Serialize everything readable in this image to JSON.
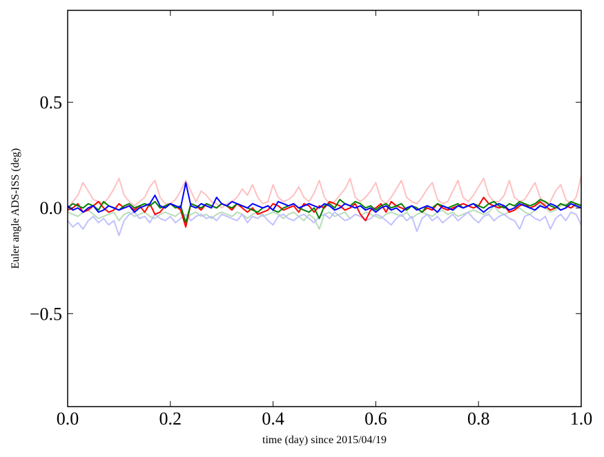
{
  "chart_data": {
    "type": "line",
    "xlabel": "time (day) since 2015/04/19",
    "ylabel": "Euler angle ADS-ISS (deg)",
    "xlim": [
      0,
      1
    ],
    "ylim": [
      -0.94,
      0.935
    ],
    "xticks": [
      {
        "value": 0,
        "label": "0.0"
      },
      0.2,
      0.4,
      0.6,
      0.8,
      {
        "value": 1,
        "label": "1.0"
      }
    ],
    "yticks": [
      {
        "value": -0.5,
        "label": "−0.5"
      },
      {
        "value": 0,
        "label": "0.0"
      },
      0.5
    ],
    "grid": false,
    "x": [
      0,
      0.01,
      0.02,
      0.03,
      0.04,
      0.05,
      0.06,
      0.07,
      0.08,
      0.09,
      0.1,
      0.11,
      0.12,
      0.13,
      0.14,
      0.15,
      0.16,
      0.17,
      0.18,
      0.19,
      0.2,
      0.21,
      0.22,
      0.23,
      0.24,
      0.25,
      0.26,
      0.27,
      0.28,
      0.29,
      0.3,
      0.31,
      0.32,
      0.33,
      0.34,
      0.35,
      0.36,
      0.37,
      0.38,
      0.39,
      0.4,
      0.41,
      0.42,
      0.43,
      0.44,
      0.45,
      0.46,
      0.47,
      0.48,
      0.49,
      0.5,
      0.51,
      0.52,
      0.53,
      0.54,
      0.55,
      0.56,
      0.57,
      0.58,
      0.59,
      0.6,
      0.61,
      0.62,
      0.63,
      0.64,
      0.65,
      0.66,
      0.67,
      0.68,
      0.69,
      0.7,
      0.71,
      0.72,
      0.73,
      0.74,
      0.75,
      0.76,
      0.77,
      0.78,
      0.79,
      0.8,
      0.81,
      0.82,
      0.83,
      0.84,
      0.85,
      0.86,
      0.87,
      0.88,
      0.89,
      0.9,
      0.91,
      0.92,
      0.93,
      0.94,
      0.95,
      0.96,
      0.97,
      0.98,
      0.99,
      1
    ],
    "series": [
      {
        "color": "#ffc0c0",
        "values": [
          0,
          0.03,
          0.06,
          0.12,
          0.08,
          0.04,
          0.03,
          0.02,
          0.05,
          0.09,
          0.14,
          0.06,
          0.03,
          0.01,
          0.03,
          0.05,
          0.1,
          0.13,
          0.05,
          0.02,
          0.02,
          0.04,
          0.08,
          0.13,
          0.08,
          0.03,
          0.08,
          0.06,
          0.03,
          0.02,
          0,
          0.02,
          0.03,
          0.05,
          0.09,
          0.06,
          0.11,
          0.05,
          0.02,
          0.03,
          0.11,
          0.05,
          0.03,
          0.04,
          0.06,
          0.1,
          0.05,
          0.03,
          0.07,
          0.13,
          0.05,
          0.02,
          0.03,
          0.06,
          0.09,
          0.14,
          0.05,
          0.03,
          0.05,
          0.08,
          0.12,
          0.04,
          0.02,
          0.05,
          0.09,
          0.13,
          0.05,
          0.03,
          0.02,
          0.05,
          0.09,
          0.12,
          0.04,
          0.02,
          0.03,
          0.08,
          0.13,
          0.05,
          0.03,
          0.06,
          0.1,
          0.14,
          0.06,
          0.03,
          0.03,
          0.06,
          0.13,
          0.05,
          0.03,
          0.04,
          0.08,
          0.12,
          0.05,
          0.02,
          0.03,
          0.08,
          0.11,
          0.04,
          0.02,
          0.05,
          0.15
        ]
      },
      {
        "color": "#b8dcb8",
        "values": [
          -0.02,
          -0.03,
          -0.04,
          -0.02,
          -0.01,
          -0.03,
          -0.05,
          -0.04,
          -0.03,
          -0.02,
          -0.06,
          -0.03,
          -0.02,
          -0.04,
          -0.03,
          -0.02,
          -0.04,
          -0.05,
          -0.03,
          -0.02,
          -0.03,
          -0.04,
          -0.02,
          -0.06,
          -0.03,
          -0.02,
          -0.04,
          -0.03,
          -0.05,
          -0.03,
          -0.02,
          -0.03,
          -0.04,
          -0.02,
          -0.03,
          -0.05,
          -0.03,
          -0.02,
          -0.04,
          -0.03,
          -0.02,
          -0.03,
          -0.05,
          -0.03,
          -0.02,
          -0.04,
          -0.06,
          -0.03,
          -0.05,
          -0.1,
          -0.03,
          -0.02,
          -0.04,
          -0.03,
          -0.02,
          -0.05,
          -0.03,
          -0.04,
          -0.02,
          -0.03,
          -0.04,
          -0.05,
          -0.03,
          -0.02,
          -0.03,
          -0.04,
          -0.02,
          -0.05,
          -0.03,
          -0.02,
          -0.03,
          -0.04,
          -0.02,
          -0.01,
          -0.03,
          -0.02,
          -0.04,
          -0.03,
          -0.02,
          -0.01,
          -0.02,
          -0.03,
          -0.02,
          0.01,
          -0.02,
          -0.03,
          -0.02,
          -0.01,
          0,
          -0.02,
          -0.03,
          -0.01,
          0.02,
          0,
          -0.02,
          -0.01,
          0.01,
          0.02,
          0,
          0.01,
          0.02
        ]
      },
      {
        "color": "#c0c0ff",
        "values": [
          -0.06,
          -0.09,
          -0.07,
          -0.1,
          -0.06,
          -0.04,
          -0.07,
          -0.05,
          -0.08,
          -0.06,
          -0.13,
          -0.06,
          -0.03,
          -0.02,
          -0.05,
          -0.04,
          -0.07,
          -0.03,
          -0.05,
          -0.06,
          -0.04,
          -0.07,
          -0.05,
          -0.03,
          -0.06,
          -0.04,
          -0.03,
          -0.05,
          -0.04,
          -0.06,
          -0.03,
          -0.04,
          -0.05,
          -0.06,
          -0.03,
          -0.07,
          -0.04,
          -0.05,
          -0.03,
          -0.06,
          -0.08,
          -0.04,
          -0.03,
          -0.05,
          -0.06,
          -0.04,
          -0.03,
          -0.05,
          -0.07,
          -0.04,
          -0.03,
          -0.05,
          -0.02,
          -0.04,
          -0.06,
          -0.05,
          -0.03,
          -0.04,
          -0.06,
          -0.05,
          -0.03,
          -0.04,
          -0.06,
          -0.08,
          -0.05,
          -0.03,
          -0.06,
          -0.04,
          -0.11,
          -0.05,
          -0.03,
          -0.06,
          -0.04,
          -0.07,
          -0.05,
          -0.03,
          -0.06,
          -0.04,
          -0.02,
          -0.05,
          -0.07,
          -0.04,
          -0.03,
          -0.06,
          -0.04,
          -0.03,
          -0.05,
          -0.06,
          -0.1,
          -0.04,
          -0.03,
          -0.05,
          -0.06,
          -0.04,
          -0.1,
          -0.05,
          -0.03,
          -0.06,
          -0.02,
          -0.03,
          -0.08
        ]
      },
      {
        "color": "#ff0000",
        "values": [
          -0.01,
          0,
          0.02,
          -0.02,
          -0.01,
          0.01,
          0.03,
          0,
          -0.02,
          -0.01,
          0.02,
          0,
          0.01,
          -0.01,
          0.01,
          -0.02,
          0.02,
          -0.03,
          -0.02,
          0.01,
          0.02,
          0.01,
          -0.01,
          -0.09,
          0.02,
          0.01,
          -0.01,
          0.02,
          0.01,
          0,
          0.02,
          0.01,
          -0.01,
          0.02,
          0,
          -0.02,
          0,
          -0.03,
          -0.02,
          -0.01,
          0.02,
          0.01,
          -0.01,
          0,
          0.01,
          -0.02,
          0.02,
          0.01,
          -0.02,
          0.01,
          0,
          0.03,
          0.02,
          0.01,
          -0.01,
          0,
          0.02,
          -0.03,
          -0.06,
          -0.01,
          0,
          0.02,
          -0.02,
          0.03,
          0.01,
          0,
          -0.01,
          0.01,
          0,
          -0.02,
          0,
          -0.01,
          0.02,
          0,
          -0.01,
          0,
          0.01,
          0.02,
          0.01,
          0,
          0.01,
          0.05,
          0.02,
          0.01,
          0,
          0.01,
          -0.02,
          -0.01,
          0.01,
          0.02,
          0,
          0.01,
          0.03,
          0.01,
          -0.01,
          0,
          0.02,
          0.01,
          0,
          0.02,
          0.01
        ]
      },
      {
        "color": "#008000",
        "values": [
          0,
          0.02,
          0.01,
          0,
          0.02,
          0.01,
          -0.01,
          0.03,
          0.01,
          0,
          -0.01,
          0.01,
          0.02,
          0,
          0.01,
          0.02,
          0.01,
          0.03,
          0,
          0.01,
          0.02,
          0,
          0.01,
          -0.07,
          0.02,
          0.01,
          0,
          0.02,
          0.01,
          0,
          0.02,
          0.01,
          0,
          0.02,
          0.01,
          0,
          -0.01,
          -0.02,
          0,
          0.01,
          -0.01,
          -0.02,
          0,
          0.01,
          0.02,
          0,
          -0.01,
          -0.02,
          0,
          -0.05,
          0.01,
          0.02,
          0,
          0.04,
          0.02,
          0.01,
          0.03,
          0.02,
          0,
          0.01,
          -0.01,
          0.01,
          0.02,
          0,
          0.01,
          0.02,
          -0.01,
          0.01,
          0,
          -0.02,
          0.01,
          0,
          0.02,
          0.01,
          0,
          0.01,
          0.02,
          0,
          0.01,
          0.02,
          0.01,
          0,
          0.02,
          0.03,
          0.01,
          0,
          0.02,
          0.01,
          0.03,
          0.02,
          0.01,
          0.02,
          0.04,
          0.03,
          0.01,
          0,
          0.02,
          0.01,
          0.03,
          0.02,
          0.01
        ]
      },
      {
        "color": "#0000ff",
        "values": [
          0.01,
          -0.01,
          0,
          -0.02,
          0,
          0.01,
          -0.02,
          -0.01,
          0.01,
          0,
          -0.01,
          0,
          0.01,
          -0.02,
          0,
          0.01,
          0.02,
          0.06,
          0.01,
          0,
          0.02,
          0.01,
          0,
          0.12,
          0.01,
          0,
          0.02,
          0.01,
          0,
          0.05,
          0.02,
          0.01,
          0.03,
          0.02,
          0.01,
          0,
          0.02,
          0.01,
          0,
          0.01,
          -0.01,
          0.03,
          0.02,
          0.01,
          0.02,
          0,
          0.01,
          0.02,
          0.01,
          0,
          0.02,
          0.01,
          -0.01,
          0,
          0.02,
          0.01,
          0,
          0.01,
          -0.01,
          0,
          -0.02,
          0,
          0.01,
          -0.01,
          0,
          -0.02,
          0,
          0.01,
          -0.01,
          0,
          0.01,
          0,
          -0.02,
          0.01,
          0,
          -0.01,
          0.01,
          0,
          0.01,
          0.02,
          0,
          -0.02,
          0,
          0.01,
          0.02,
          0.01,
          -0.01,
          0,
          0.02,
          0.01,
          0,
          -0.01,
          0.01,
          0,
          0.02,
          0.01,
          -0.01,
          0,
          0.02,
          0.01,
          0
        ]
      }
    ]
  }
}
